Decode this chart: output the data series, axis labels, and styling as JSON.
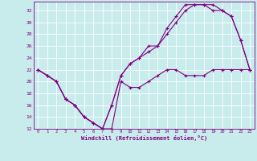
{
  "xlabel": "Windchill (Refroidissement éolien,°C)",
  "bg_color": "#c8ecec",
  "line_color": "#800080",
  "grid_color": "#ffffff",
  "xlim": [
    -0.5,
    23.5
  ],
  "ylim": [
    12,
    33
  ],
  "yticks": [
    12,
    14,
    16,
    18,
    20,
    22,
    24,
    26,
    28,
    30,
    32
  ],
  "xticks": [
    0,
    1,
    2,
    3,
    4,
    5,
    6,
    7,
    8,
    9,
    10,
    11,
    12,
    13,
    14,
    15,
    16,
    17,
    18,
    19,
    20,
    21,
    22,
    23
  ],
  "series": [
    {
      "x": [
        0,
        1,
        2,
        3,
        4,
        5,
        6,
        7,
        8,
        9,
        10,
        11,
        12,
        13,
        14,
        15,
        16,
        17,
        18,
        19,
        20,
        21,
        22,
        23
      ],
      "y": [
        22,
        21,
        20,
        17,
        16,
        14,
        13,
        12,
        12,
        20,
        19,
        19,
        20,
        21,
        22,
        22,
        21,
        21,
        21,
        22,
        22,
        22,
        22,
        22
      ]
    },
    {
      "x": [
        0,
        1,
        2,
        3,
        4,
        5,
        6,
        7,
        8,
        9,
        10,
        11,
        12,
        13,
        14,
        15,
        16,
        17,
        18,
        19,
        20,
        21,
        22,
        23
      ],
      "y": [
        22,
        21,
        20,
        17,
        16,
        14,
        13,
        12,
        16,
        21,
        23,
        24,
        25,
        26,
        28,
        30,
        32,
        33,
        33,
        32,
        32,
        31,
        27,
        22
      ]
    },
    {
      "x": [
        0,
        1,
        2,
        3,
        4,
        5,
        6,
        7,
        8,
        9,
        10,
        11,
        12,
        13,
        14,
        15,
        16,
        17,
        18,
        19,
        20,
        21,
        22,
        23
      ],
      "y": [
        22,
        21,
        20,
        17,
        16,
        14,
        13,
        12,
        16,
        21,
        23,
        24,
        26,
        26,
        29,
        31,
        33,
        33,
        33,
        33,
        32,
        31,
        27,
        22
      ]
    }
  ]
}
